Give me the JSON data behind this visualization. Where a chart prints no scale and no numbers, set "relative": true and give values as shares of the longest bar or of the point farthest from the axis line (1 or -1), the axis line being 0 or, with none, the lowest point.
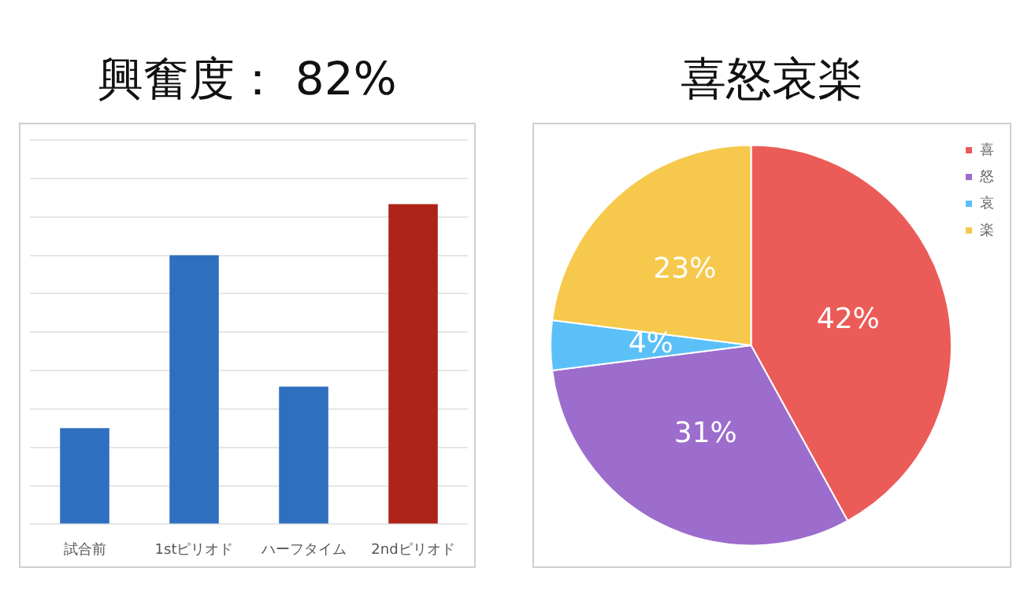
{
  "chart_data": [
    {
      "type": "bar",
      "title": "興奮度：  82%",
      "categories": [
        "試合前",
        "1stピリオド",
        "ハーフタイム",
        "2ndピリオド"
      ],
      "values": [
        0.3,
        0.84,
        0.43,
        1
      ],
      "colors": [
        "#2e6fbf",
        "#2e6fbf",
        "#2e6fbf",
        "#ae2318"
      ],
      "relative": true,
      "grid": "y",
      "legend": false
    },
    {
      "type": "pie",
      "title": "喜怒哀楽",
      "categories": [
        "喜",
        "怒",
        "哀",
        "楽"
      ],
      "values": [
        42,
        31,
        4,
        23
      ],
      "colors": [
        "#eb5b58",
        "#9c6dcd",
        "#5bc0f8",
        "#f6c94c"
      ],
      "value_labels": [
        "42%",
        "31%",
        "4%",
        "23%"
      ],
      "legend": "top right"
    }
  ]
}
